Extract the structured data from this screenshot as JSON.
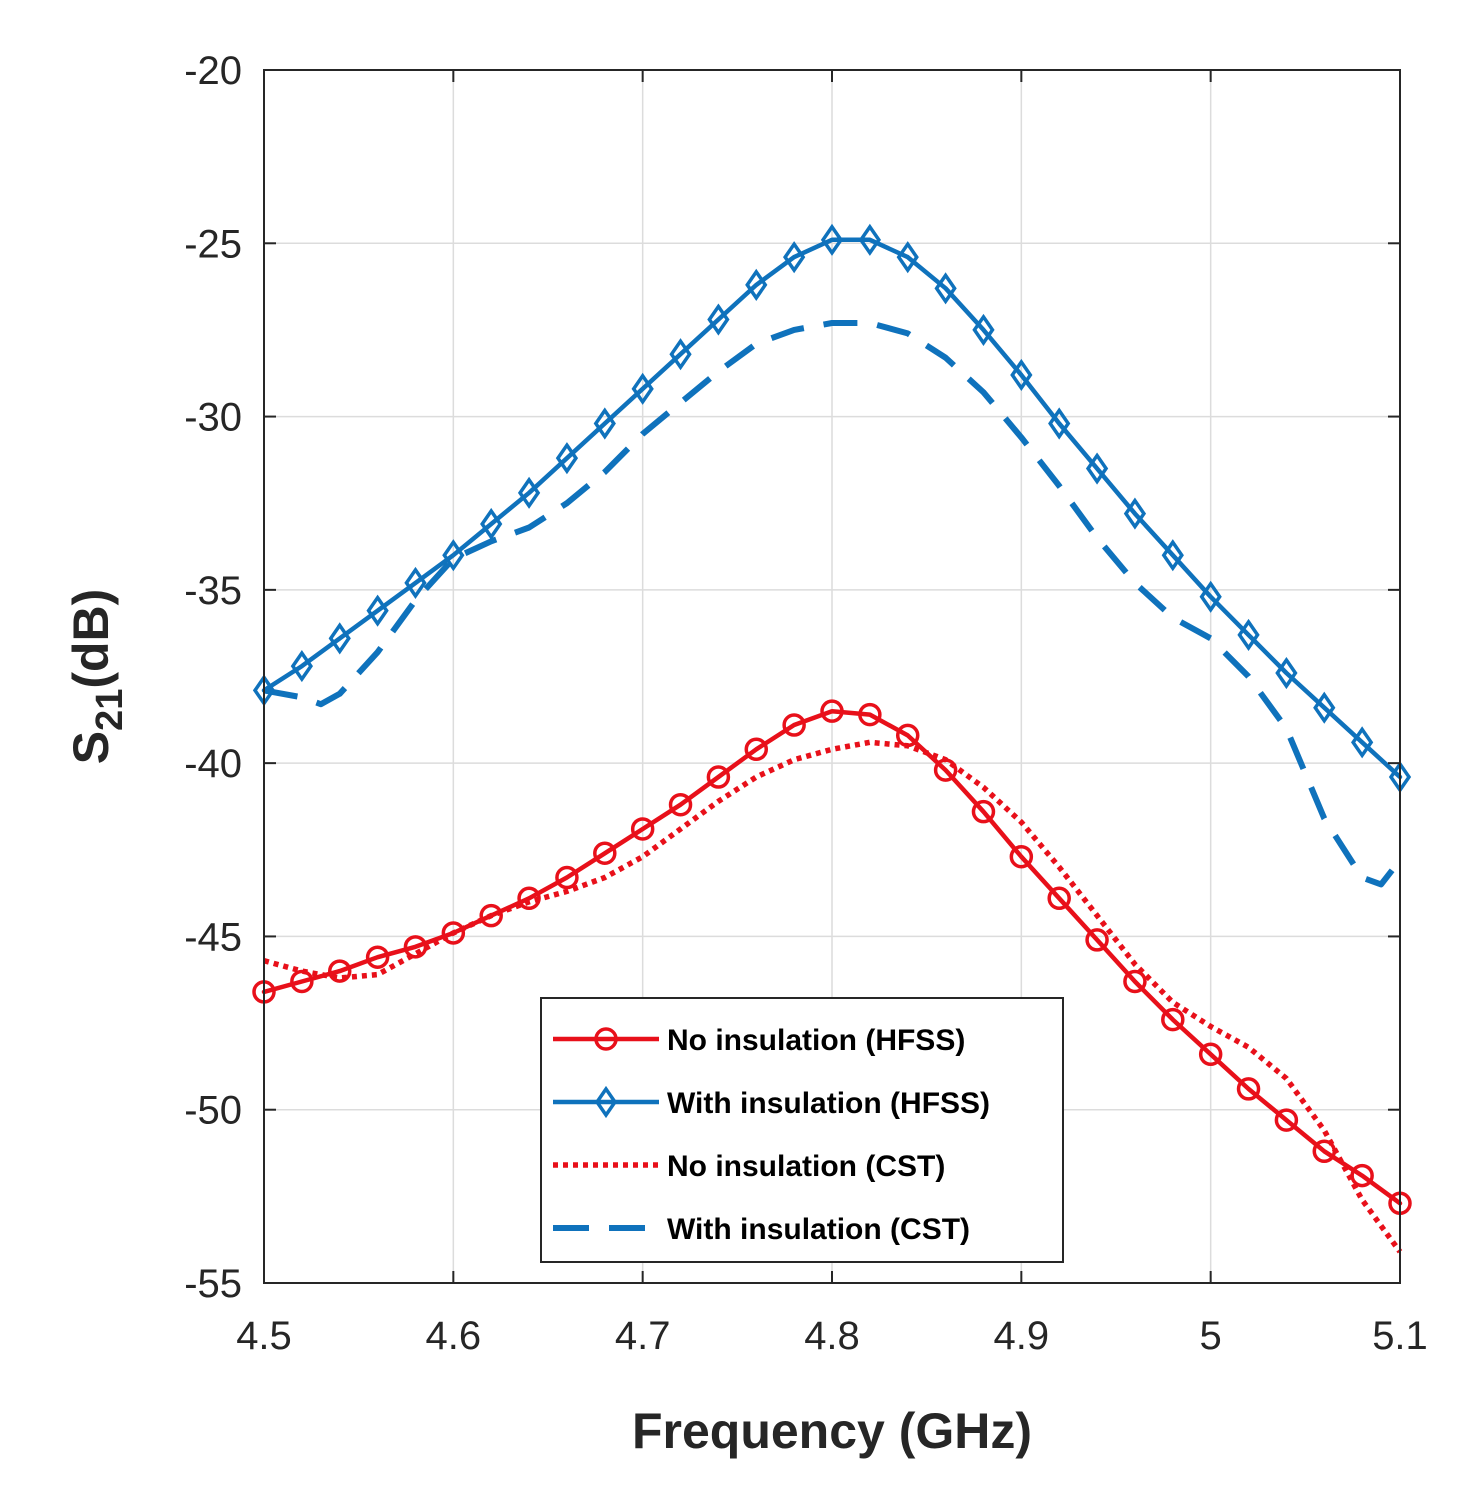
{
  "chart_data": {
    "type": "line",
    "xlabel": "Frequency (GHz)",
    "ylabel": {
      "base": "S",
      "sub": "21",
      "suffix": "(dB)"
    },
    "xlim": [
      4.5,
      5.1
    ],
    "ylim": [
      -55,
      -20
    ],
    "xticks": [
      4.5,
      4.6,
      4.7,
      4.8,
      4.9,
      5,
      5.1
    ],
    "xtick_labels": [
      "4.5",
      "4.6",
      "4.7",
      "4.8",
      "4.9",
      "5",
      "5.1"
    ],
    "yticks": [
      -55,
      -50,
      -45,
      -40,
      -35,
      -30,
      -25,
      -20
    ],
    "ytick_labels": [
      "-55",
      "-50",
      "-45",
      "-40",
      "-35",
      "-30",
      "-25",
      "-20"
    ],
    "grid": true,
    "legend_position": "bottom-center",
    "series": [
      {
        "name": "No insulation (HFSS)",
        "color": "#e8101a",
        "style": "solid-circle",
        "x": [
          4.5,
          4.52,
          4.54,
          4.56,
          4.58,
          4.6,
          4.62,
          4.64,
          4.66,
          4.68,
          4.7,
          4.72,
          4.74,
          4.76,
          4.78,
          4.8,
          4.82,
          4.84,
          4.86,
          4.88,
          4.9,
          4.92,
          4.94,
          4.96,
          4.98,
          5.0,
          5.02,
          5.04,
          5.06,
          5.08,
          5.1
        ],
        "y": [
          -46.6,
          -46.3,
          -46.0,
          -45.6,
          -45.3,
          -44.9,
          -44.4,
          -43.9,
          -43.3,
          -42.6,
          -41.9,
          -41.2,
          -40.4,
          -39.6,
          -38.9,
          -38.5,
          -38.6,
          -39.2,
          -40.2,
          -41.4,
          -42.7,
          -43.9,
          -45.1,
          -46.3,
          -47.4,
          -48.4,
          -49.4,
          -50.3,
          -51.2,
          -51.9,
          -52.7
        ]
      },
      {
        "name": "With insulation (HFSS)",
        "color": "#0f72bc",
        "style": "solid-diamond",
        "x": [
          4.5,
          4.52,
          4.54,
          4.56,
          4.58,
          4.6,
          4.62,
          4.64,
          4.66,
          4.68,
          4.7,
          4.72,
          4.74,
          4.76,
          4.78,
          4.8,
          4.82,
          4.84,
          4.86,
          4.88,
          4.9,
          4.92,
          4.94,
          4.96,
          4.98,
          5.0,
          5.02,
          5.04,
          5.06,
          5.08,
          5.1
        ],
        "y": [
          -37.9,
          -37.2,
          -36.4,
          -35.6,
          -34.8,
          -34.0,
          -33.1,
          -32.2,
          -31.2,
          -30.2,
          -29.2,
          -28.2,
          -27.2,
          -26.2,
          -25.4,
          -24.9,
          -24.9,
          -25.4,
          -26.3,
          -27.5,
          -28.8,
          -30.2,
          -31.5,
          -32.8,
          -34.0,
          -35.2,
          -36.3,
          -37.4,
          -38.4,
          -39.4,
          -40.4
        ]
      },
      {
        "name": "No insulation (CST)",
        "color": "#e8101a",
        "style": "dotted",
        "x": [
          4.5,
          4.52,
          4.54,
          4.56,
          4.58,
          4.6,
          4.62,
          4.64,
          4.66,
          4.68,
          4.7,
          4.72,
          4.74,
          4.76,
          4.78,
          4.8,
          4.82,
          4.84,
          4.86,
          4.88,
          4.9,
          4.92,
          4.94,
          4.96,
          4.98,
          5.0,
          5.02,
          5.04,
          5.06,
          5.08,
          5.1
        ],
        "y": [
          -45.7,
          -46.0,
          -46.2,
          -46.1,
          -45.5,
          -44.9,
          -44.4,
          -44.0,
          -43.7,
          -43.3,
          -42.7,
          -41.9,
          -41.1,
          -40.4,
          -39.9,
          -39.6,
          -39.4,
          -39.5,
          -39.9,
          -40.7,
          -41.7,
          -43.0,
          -44.4,
          -45.8,
          -46.9,
          -47.6,
          -48.2,
          -49.1,
          -50.6,
          -52.6,
          -54.1
        ]
      },
      {
        "name": "With insulation (CST)",
        "color": "#0f72bc",
        "style": "dashed",
        "x": [
          4.5,
          4.52,
          4.53,
          4.54,
          4.56,
          4.58,
          4.6,
          4.62,
          4.64,
          4.66,
          4.68,
          4.7,
          4.72,
          4.74,
          4.76,
          4.78,
          4.8,
          4.82,
          4.84,
          4.86,
          4.88,
          4.9,
          4.92,
          4.94,
          4.96,
          4.98,
          5.0,
          5.02,
          5.04,
          5.06,
          5.08,
          5.09,
          5.1
        ],
        "y": [
          -37.9,
          -38.1,
          -38.3,
          -38.0,
          -36.8,
          -35.3,
          -34.1,
          -33.6,
          -33.2,
          -32.5,
          -31.6,
          -30.5,
          -29.6,
          -28.7,
          -27.9,
          -27.5,
          -27.3,
          -27.3,
          -27.6,
          -28.3,
          -29.3,
          -30.6,
          -32.0,
          -33.5,
          -34.8,
          -35.8,
          -36.4,
          -37.5,
          -39.0,
          -41.6,
          -43.3,
          -43.5,
          -42.8
        ]
      }
    ]
  }
}
